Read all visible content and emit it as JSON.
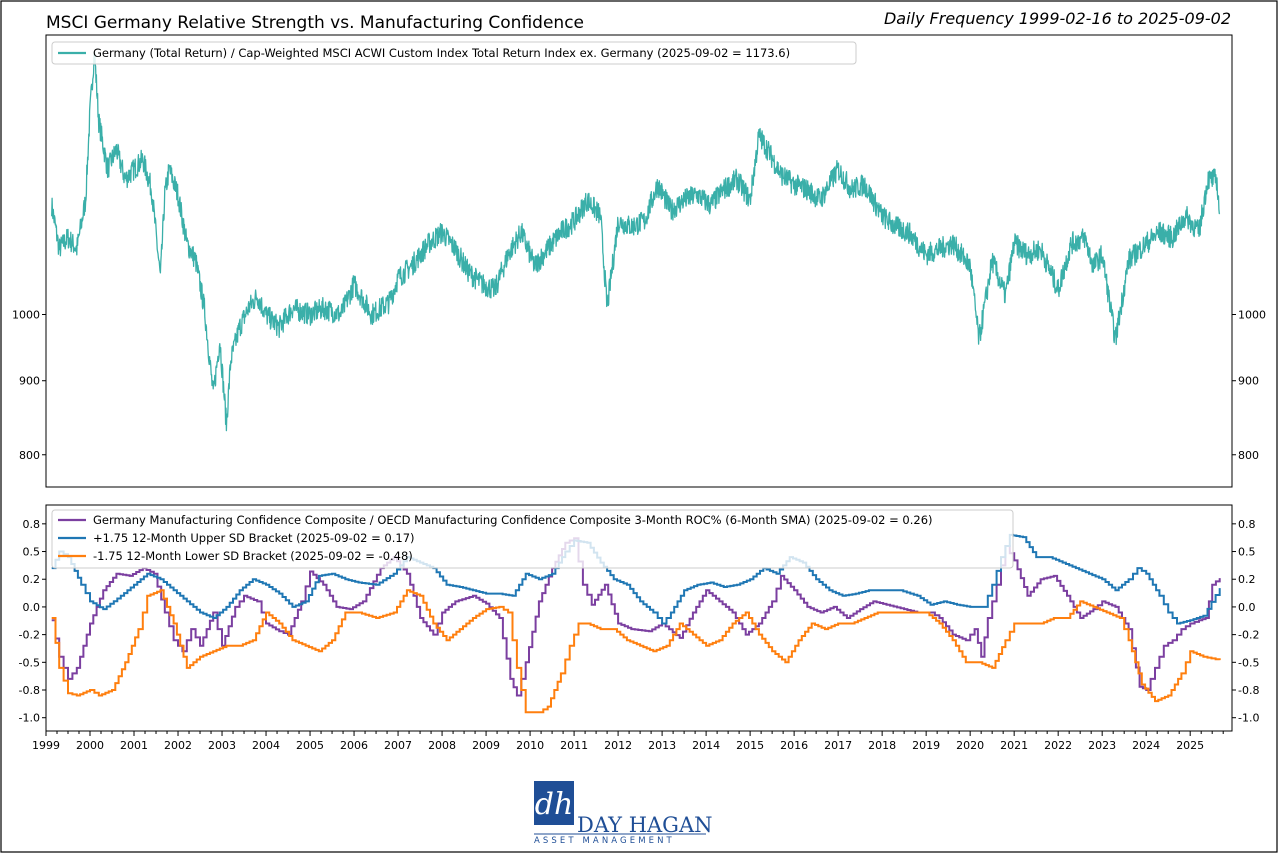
{
  "header": {
    "title": "MSCI Germany Relative Strength vs. Manufacturing Confidence",
    "frequency": "Daily Frequency 1999-02-16 to 2025-09-02"
  },
  "colors": {
    "relative_strength": "#3aafa9",
    "composite_roc": "#7b3fa0",
    "upper_bracket": "#1f77b4",
    "lower_bracket": "#ff7f0e",
    "frame": "#000000",
    "logo_blue": "#1f4e96"
  },
  "chart_data": [
    {
      "type": "line",
      "panel": "top",
      "y_scale": "log",
      "ylim": [
        760,
        1560
      ],
      "xlim": [
        1999.0,
        2025.95
      ],
      "y_ticks": [
        800,
        900,
        1000
      ],
      "y_tick_labels": [
        "800",
        "900",
        "1000"
      ],
      "legend": "upper-left",
      "series": [
        {
          "name": "Germany (Total Return) / Cap-Weighted MSCI ACWI Custom Index Total Return Index ex. Germany (2025-09-02 = 1173.6)",
          "color_key": "relative_strength",
          "x": [
            1999.13,
            1999.3,
            1999.5,
            1999.7,
            1999.9,
            2000.0,
            2000.1,
            2000.2,
            2000.4,
            2000.6,
            2000.8,
            2001.0,
            2001.2,
            2001.4,
            2001.6,
            2001.7,
            2001.8,
            2002.0,
            2002.2,
            2002.4,
            2002.6,
            2002.8,
            2002.95,
            2003.1,
            2003.2,
            2003.4,
            2003.6,
            2003.8,
            2004.0,
            2004.3,
            2004.6,
            2005.0,
            2005.3,
            2005.7,
            2006.0,
            2006.4,
            2006.8,
            2007.0,
            2007.3,
            2007.7,
            2008.0,
            2008.3,
            2008.6,
            2008.9,
            2009.2,
            2009.5,
            2009.8,
            2010.1,
            2010.4,
            2010.7,
            2011.0,
            2011.3,
            2011.6,
            2011.75,
            2012.0,
            2012.3,
            2012.6,
            2012.9,
            2013.2,
            2013.5,
            2013.8,
            2014.1,
            2014.4,
            2014.7,
            2015.0,
            2015.2,
            2015.4,
            2015.7,
            2016.0,
            2016.3,
            2016.6,
            2017.0,
            2017.3,
            2017.6,
            2018.0,
            2018.3,
            2018.6,
            2019.0,
            2019.3,
            2019.6,
            2020.0,
            2020.2,
            2020.5,
            2020.8,
            2021.0,
            2021.3,
            2021.6,
            2022.0,
            2022.3,
            2022.6,
            2022.8,
            2023.0,
            2023.3,
            2023.6,
            2024.0,
            2024.3,
            2024.6,
            2024.9,
            2025.2,
            2025.4,
            2025.6,
            2025.67
          ],
          "values": [
            1190,
            1110,
            1130,
            1110,
            1200,
            1380,
            1520,
            1360,
            1260,
            1300,
            1240,
            1260,
            1280,
            1220,
            1060,
            1210,
            1260,
            1210,
            1120,
            1090,
            1010,
            880,
            960,
            840,
            930,
            980,
            1010,
            1030,
            1000,
            980,
            1010,
            1000,
            1010,
            1000,
            1050,
            1000,
            1020,
            1060,
            1080,
            1120,
            1140,
            1110,
            1070,
            1050,
            1040,
            1100,
            1140,
            1080,
            1110,
            1140,
            1160,
            1200,
            1170,
            1010,
            1160,
            1150,
            1160,
            1230,
            1180,
            1200,
            1210,
            1190,
            1220,
            1240,
            1200,
            1330,
            1300,
            1250,
            1230,
            1220,
            1200,
            1260,
            1220,
            1230,
            1170,
            1150,
            1140,
            1100,
            1110,
            1120,
            1080,
            960,
            1090,
            1030,
            1120,
            1100,
            1110,
            1040,
            1120,
            1130,
            1080,
            1100,
            960,
            1090,
            1120,
            1140,
            1130,
            1170,
            1140,
            1240,
            1240,
            1173.6
          ]
        }
      ]
    },
    {
      "type": "line",
      "panel": "bottom",
      "step": true,
      "ylim": [
        -1.12,
        0.92
      ],
      "xlim": [
        1999.0,
        2025.95
      ],
      "y_ticks": [
        -1.0,
        -0.75,
        -0.5,
        -0.25,
        0.0,
        0.25,
        0.5,
        0.75
      ],
      "y_tick_labels": [
        "-1.0",
        "-0.8",
        "-0.5",
        "-0.2",
        "0.0",
        "0.2",
        "0.5",
        "0.8"
      ],
      "x_ticks": [
        1999,
        2000,
        2001,
        2002,
        2003,
        2004,
        2005,
        2006,
        2007,
        2008,
        2009,
        2010,
        2011,
        2012,
        2013,
        2014,
        2015,
        2016,
        2017,
        2018,
        2019,
        2020,
        2021,
        2022,
        2023,
        2024,
        2025
      ],
      "x_tick_labels": [
        "1999",
        "2000",
        "2001",
        "2002",
        "2003",
        "2004",
        "2005",
        "2006",
        "2007",
        "2008",
        "2009",
        "2010",
        "2011",
        "2012",
        "2013",
        "2014",
        "2015",
        "2016",
        "2017",
        "2018",
        "2019",
        "2020",
        "2021",
        "2022",
        "2023",
        "2024",
        "2025"
      ],
      "legend": "upper-left",
      "series": [
        {
          "name": "Germany Manufacturing Confidence Composite / OECD  Manufacturing Confidence Composite 3-Month ROC% (6-Month SMA) (2025-09-02 = 0.26)",
          "color_key": "composite_roc",
          "x": [
            1999.13,
            1999.3,
            1999.5,
            1999.7,
            2000.0,
            2000.3,
            2000.6,
            2000.9,
            2001.2,
            2001.45,
            2001.7,
            2001.9,
            2002.1,
            2002.3,
            2002.5,
            2002.8,
            2003.0,
            2003.3,
            2003.5,
            2003.8,
            2004.0,
            2004.3,
            2004.5,
            2004.8,
            2005.0,
            2005.3,
            2005.6,
            2005.9,
            2006.2,
            2006.6,
            2006.9,
            2007.2,
            2007.5,
            2007.8,
            2008.0,
            2008.3,
            2008.7,
            2009.0,
            2009.3,
            2009.55,
            2009.7,
            2009.9,
            2010.2,
            2010.5,
            2010.8,
            2011.0,
            2011.2,
            2011.4,
            2011.7,
            2012.0,
            2012.3,
            2012.7,
            2013.0,
            2013.4,
            2013.7,
            2014.0,
            2014.3,
            2014.6,
            2014.9,
            2015.2,
            2015.5,
            2015.7,
            2016.0,
            2016.3,
            2016.6,
            2016.9,
            2017.2,
            2017.5,
            2017.8,
            2018.1,
            2018.5,
            2018.8,
            2019.1,
            2019.3,
            2019.6,
            2019.9,
            2020.1,
            2020.25,
            2020.4,
            2020.6,
            2020.8,
            2021.0,
            2021.3,
            2021.6,
            2021.9,
            2022.2,
            2022.5,
            2022.8,
            2023.0,
            2023.3,
            2023.6,
            2023.85,
            2024.0,
            2024.2,
            2024.4,
            2024.6,
            2024.8,
            2025.0,
            2025.2,
            2025.35,
            2025.5,
            2025.67
          ],
          "values": [
            -0.12,
            -0.45,
            -0.65,
            -0.55,
            -0.15,
            0.15,
            0.3,
            0.28,
            0.35,
            0.3,
            -0.05,
            -0.3,
            -0.4,
            -0.2,
            -0.35,
            -0.05,
            -0.35,
            0.0,
            0.1,
            0.05,
            -0.15,
            -0.22,
            -0.25,
            0.05,
            0.32,
            0.2,
            0.0,
            -0.02,
            0.05,
            0.35,
            0.45,
            0.3,
            -0.1,
            -0.25,
            -0.05,
            0.05,
            0.1,
            0.03,
            -0.1,
            -0.65,
            -0.8,
            -0.5,
            0.05,
            0.35,
            0.58,
            0.62,
            0.2,
            0.02,
            0.2,
            -0.15,
            -0.2,
            -0.22,
            -0.15,
            -0.28,
            -0.05,
            0.15,
            0.05,
            -0.05,
            -0.25,
            -0.15,
            0.05,
            0.28,
            0.15,
            0.0,
            -0.05,
            0.0,
            -0.1,
            -0.02,
            0.05,
            0.02,
            -0.02,
            -0.05,
            -0.05,
            -0.1,
            -0.25,
            -0.3,
            -0.2,
            -0.45,
            -0.1,
            0.2,
            0.55,
            0.42,
            0.1,
            0.25,
            0.28,
            0.1,
            -0.1,
            -0.02,
            0.05,
            0.0,
            -0.2,
            -0.72,
            -0.75,
            -0.55,
            -0.35,
            -0.3,
            -0.2,
            -0.15,
            -0.12,
            -0.1,
            0.2,
            0.26
          ]
        },
        {
          "name": "+1.75 12-Month Upper SD Bracket (2025-09-02 = 0.17)",
          "color_key": "upper_bracket",
          "x": [
            1999.13,
            1999.3,
            1999.5,
            1999.8,
            2000.0,
            2000.3,
            2000.7,
            2001.0,
            2001.3,
            2001.6,
            2001.9,
            2002.2,
            2002.5,
            2002.8,
            2003.1,
            2003.4,
            2003.7,
            2004.0,
            2004.3,
            2004.6,
            2004.9,
            2005.2,
            2005.5,
            2005.8,
            2006.1,
            2006.5,
            2006.9,
            2007.2,
            2007.5,
            2007.8,
            2008.1,
            2008.4,
            2008.7,
            2009.0,
            2009.3,
            2009.6,
            2009.9,
            2010.2,
            2010.5,
            2010.8,
            2011.0,
            2011.3,
            2011.6,
            2011.9,
            2012.2,
            2012.5,
            2012.8,
            2013.0,
            2013.2,
            2013.5,
            2013.8,
            2014.1,
            2014.4,
            2014.7,
            2015.0,
            2015.3,
            2015.6,
            2015.9,
            2016.2,
            2016.5,
            2016.8,
            2017.1,
            2017.4,
            2017.7,
            2018.0,
            2018.4,
            2018.8,
            2019.1,
            2019.4,
            2019.7,
            2020.0,
            2020.3,
            2020.5,
            2020.7,
            2020.9,
            2021.2,
            2021.5,
            2021.8,
            2022.1,
            2022.4,
            2022.7,
            2023.0,
            2023.3,
            2023.6,
            2023.8,
            2024.0,
            2024.3,
            2024.5,
            2024.7,
            2025.0,
            2025.3,
            2025.67
          ],
          "values": [
            0.35,
            0.5,
            0.45,
            0.2,
            0.05,
            -0.02,
            0.1,
            0.2,
            0.3,
            0.25,
            0.15,
            0.05,
            -0.05,
            -0.1,
            0.0,
            0.15,
            0.25,
            0.2,
            0.12,
            0.0,
            0.05,
            0.28,
            0.3,
            0.25,
            0.22,
            0.2,
            0.3,
            0.45,
            0.4,
            0.35,
            0.2,
            0.18,
            0.15,
            0.12,
            0.12,
            0.1,
            0.3,
            0.25,
            0.3,
            0.5,
            0.6,
            0.58,
            0.4,
            0.25,
            0.2,
            0.05,
            -0.05,
            -0.15,
            -0.05,
            0.15,
            0.2,
            0.22,
            0.18,
            0.2,
            0.25,
            0.35,
            0.3,
            0.45,
            0.4,
            0.25,
            0.15,
            0.1,
            0.12,
            0.15,
            0.15,
            0.15,
            0.1,
            0.02,
            0.05,
            0.02,
            0.0,
            0.0,
            0.2,
            0.45,
            0.65,
            0.63,
            0.45,
            0.45,
            0.4,
            0.35,
            0.3,
            0.25,
            0.15,
            0.25,
            0.35,
            0.3,
            0.1,
            -0.05,
            -0.15,
            -0.12,
            -0.08,
            0.17
          ]
        },
        {
          "name": "-1.75 12-Month Lower SD Bracket (2025-09-02 = -0.48)",
          "color_key": "lower_bracket",
          "x": [
            1999.13,
            1999.3,
            1999.5,
            1999.7,
            2000.0,
            2000.2,
            2000.5,
            2000.8,
            2001.1,
            2001.3,
            2001.6,
            2001.9,
            2002.2,
            2002.5,
            2002.8,
            2003.1,
            2003.4,
            2003.7,
            2004.0,
            2004.3,
            2004.6,
            2004.9,
            2005.2,
            2005.5,
            2005.8,
            2006.1,
            2006.5,
            2006.9,
            2007.2,
            2007.5,
            2007.8,
            2008.1,
            2008.4,
            2008.7,
            2009.0,
            2009.3,
            2009.5,
            2009.7,
            2009.9,
            2010.2,
            2010.4,
            2010.7,
            2010.9,
            2011.1,
            2011.3,
            2011.6,
            2011.9,
            2012.2,
            2012.5,
            2012.8,
            2013.1,
            2013.4,
            2013.7,
            2014.0,
            2014.3,
            2014.6,
            2014.9,
            2015.2,
            2015.5,
            2015.8,
            2016.1,
            2016.4,
            2016.7,
            2017.0,
            2017.3,
            2017.6,
            2017.9,
            2018.2,
            2018.6,
            2019.0,
            2019.3,
            2019.6,
            2019.9,
            2020.2,
            2020.5,
            2020.8,
            2021.0,
            2021.3,
            2021.6,
            2021.9,
            2022.2,
            2022.5,
            2022.8,
            2023.1,
            2023.4,
            2023.6,
            2023.9,
            2024.2,
            2024.5,
            2024.8,
            2025.0,
            2025.3,
            2025.67
          ],
          "values": [
            -0.1,
            -0.55,
            -0.78,
            -0.8,
            -0.75,
            -0.8,
            -0.75,
            -0.5,
            -0.2,
            0.1,
            0.15,
            -0.15,
            -0.55,
            -0.45,
            -0.4,
            -0.35,
            -0.35,
            -0.3,
            -0.05,
            -0.15,
            -0.3,
            -0.35,
            -0.4,
            -0.3,
            -0.05,
            -0.05,
            -0.1,
            -0.05,
            0.15,
            0.1,
            -0.15,
            -0.3,
            -0.2,
            -0.1,
            -0.02,
            0.0,
            -0.05,
            -0.55,
            -0.95,
            -0.95,
            -0.9,
            -0.6,
            -0.35,
            -0.15,
            -0.15,
            -0.2,
            -0.2,
            -0.3,
            -0.35,
            -0.4,
            -0.35,
            -0.15,
            -0.25,
            -0.35,
            -0.3,
            -0.15,
            -0.05,
            -0.25,
            -0.4,
            -0.5,
            -0.3,
            -0.15,
            -0.2,
            -0.15,
            -0.15,
            -0.1,
            -0.05,
            -0.05,
            -0.05,
            -0.05,
            -0.15,
            -0.3,
            -0.5,
            -0.5,
            -0.55,
            -0.3,
            -0.15,
            -0.15,
            -0.15,
            -0.1,
            -0.1,
            0.05,
            0.0,
            -0.05,
            -0.1,
            -0.3,
            -0.7,
            -0.85,
            -0.8,
            -0.6,
            -0.4,
            -0.45,
            -0.48
          ]
        }
      ]
    }
  ],
  "logo": {
    "monogram": "dh",
    "company": "DAY HAGAN",
    "tagline": "ASSET MANAGEMENT"
  }
}
